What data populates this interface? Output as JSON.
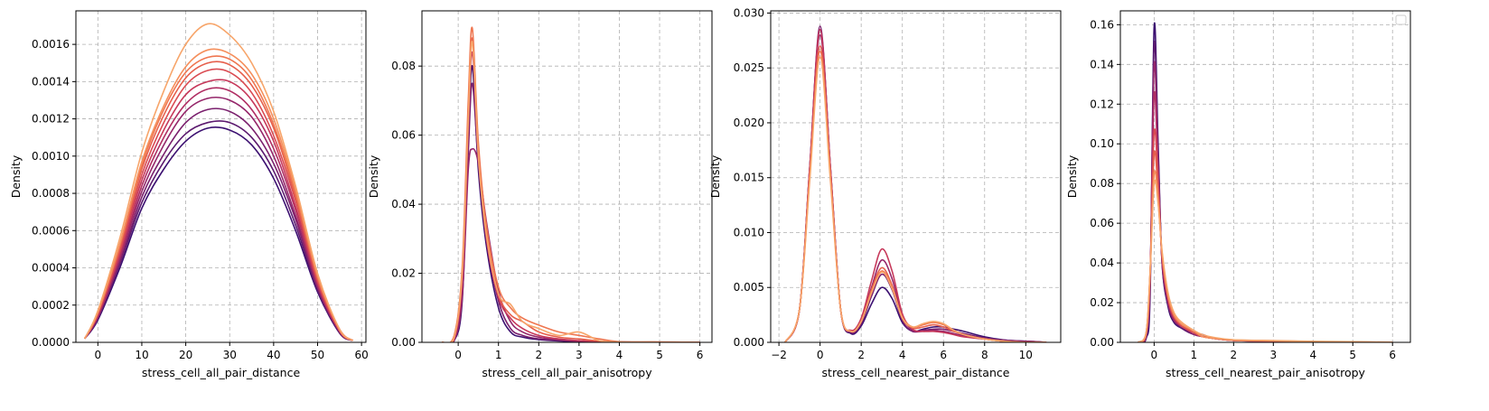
{
  "figure": {
    "panel_count": 4,
    "palette": [
      "#3b0f70",
      "#5c1a6f",
      "#7a1f6d",
      "#95266a",
      "#b02e63",
      "#c7395b",
      "#da4b52",
      "#e65f4c",
      "#ef7650",
      "#f58f5c",
      "#f7a56a"
    ],
    "grid": {
      "on": true,
      "style": "dashed",
      "color": "#b0b0b0"
    }
  },
  "chart_data": [
    {
      "type": "line",
      "subtype": "kde",
      "xlabel": "stress_cell_all_pair_distance",
      "ylabel": "Density",
      "xlim": [
        -5,
        61
      ],
      "ylim": [
        0,
        0.00178
      ],
      "xticks": [
        0,
        10,
        20,
        30,
        40,
        50,
        60
      ],
      "yticks": [
        0.0,
        0.0002,
        0.0004,
        0.0006,
        0.0008,
        0.001,
        0.0012,
        0.0014,
        0.0016
      ],
      "ytick_decimals": 4,
      "x": [
        -3,
        0,
        5,
        10,
        15,
        20,
        25,
        30,
        35,
        40,
        45,
        50,
        55,
        58
      ],
      "series": [
        {
          "values": [
            2e-05,
            0.00012,
            0.0004,
            0.00072,
            0.00093,
            0.00108,
            0.00115,
            0.00114,
            0.00106,
            0.00088,
            0.0006,
            0.00027,
            5e-05,
            1e-05
          ]
        },
        {
          "values": [
            2e-05,
            0.00013,
            0.00042,
            0.00075,
            0.00097,
            0.00112,
            0.00118,
            0.00118,
            0.0011,
            0.00092,
            0.00063,
            0.00028,
            5e-05,
            1e-05
          ]
        },
        {
          "values": [
            2e-05,
            0.00013,
            0.00043,
            0.00078,
            0.00101,
            0.00118,
            0.00125,
            0.00124,
            0.00115,
            0.00096,
            0.00066,
            0.00029,
            6e-05,
            1e-05
          ]
        },
        {
          "values": [
            2e-05,
            0.00014,
            0.00045,
            0.00081,
            0.00106,
            0.00124,
            0.00131,
            0.0013,
            0.00121,
            0.001,
            0.00068,
            0.0003,
            6e-05,
            1e-05
          ]
        },
        {
          "values": [
            2e-05,
            0.00014,
            0.00046,
            0.00084,
            0.0011,
            0.00128,
            0.00136,
            0.00135,
            0.00125,
            0.00104,
            0.00071,
            0.00031,
            6e-05,
            1e-05
          ]
        },
        {
          "values": [
            2e-05,
            0.00015,
            0.00048,
            0.00087,
            0.00114,
            0.00133,
            0.0014,
            0.0014,
            0.0013,
            0.00108,
            0.00073,
            0.00032,
            6e-05,
            1e-05
          ]
        },
        {
          "values": [
            2e-05,
            0.00015,
            0.00049,
            0.0009,
            0.00118,
            0.00138,
            0.00146,
            0.00145,
            0.00134,
            0.00111,
            0.00076,
            0.00033,
            6e-05,
            1e-05
          ]
        },
        {
          "values": [
            2e-05,
            0.00016,
            0.00051,
            0.00093,
            0.00122,
            0.00142,
            0.0015,
            0.00149,
            0.00138,
            0.00115,
            0.00078,
            0.00034,
            7e-05,
            1e-05
          ]
        },
        {
          "values": [
            2e-05,
            0.00016,
            0.00052,
            0.00095,
            0.00125,
            0.00145,
            0.00153,
            0.00152,
            0.00141,
            0.00117,
            0.0008,
            0.00035,
            7e-05,
            1e-05
          ]
        },
        {
          "values": [
            2e-05,
            0.00016,
            0.00053,
            0.00097,
            0.00127,
            0.00148,
            0.00157,
            0.00155,
            0.00144,
            0.0012,
            0.00082,
            0.00036,
            7e-05,
            1e-05
          ]
        },
        {
          "values": [
            2e-05,
            0.00017,
            0.00056,
            0.00102,
            0.00135,
            0.0016,
            0.00171,
            0.00165,
            0.0015,
            0.00124,
            0.00084,
            0.00037,
            7e-05,
            1e-05
          ]
        }
      ]
    },
    {
      "type": "line",
      "subtype": "kde",
      "xlabel": "stress_cell_all_pair_anisotropy",
      "ylabel": "Density",
      "xlim": [
        -0.9,
        6.3
      ],
      "ylim": [
        0,
        0.096
      ],
      "xticks": [
        0,
        1,
        2,
        3,
        4,
        5,
        6
      ],
      "yticks": [
        0.0,
        0.02,
        0.04,
        0.06,
        0.08
      ],
      "ytick_decimals": 2,
      "x": [
        -0.4,
        -0.1,
        0.1,
        0.25,
        0.35,
        0.5,
        0.7,
        1.0,
        1.3,
        1.6,
        2.0,
        2.5,
        3.0,
        3.5,
        4.0,
        5.0,
        6.0
      ],
      "series": [
        {
          "values": [
            0,
            0.0005,
            0.012,
            0.058,
            0.08,
            0.05,
            0.028,
            0.01,
            0.003,
            0.0015,
            0.0008,
            0.0004,
            0.0002,
            0.0001,
            0.0001,
            0,
            0
          ]
        },
        {
          "values": [
            0,
            0.0008,
            0.015,
            0.055,
            0.075,
            0.052,
            0.03,
            0.012,
            0.004,
            0.002,
            0.001,
            0.0006,
            0.0003,
            0.0002,
            0.0001,
            0,
            0
          ]
        },
        {
          "values": [
            0,
            0.0006,
            0.013,
            0.05,
            0.056,
            0.052,
            0.035,
            0.015,
            0.006,
            0.003,
            0.0015,
            0.0008,
            0.0004,
            0.0002,
            0.0001,
            0,
            0
          ]
        },
        {
          "values": [
            0,
            0.001,
            0.018,
            0.062,
            0.084,
            0.055,
            0.03,
            0.013,
            0.007,
            0.004,
            0.002,
            0.001,
            0.0005,
            0.0002,
            0.0001,
            0,
            0
          ]
        },
        {
          "values": [
            0,
            0.0012,
            0.02,
            0.066,
            0.088,
            0.056,
            0.032,
            0.014,
            0.008,
            0.006,
            0.003,
            0.0015,
            0.001,
            0.0004,
            0.0001,
            0.0001,
            0
          ]
        },
        {
          "values": [
            0,
            0.002,
            0.022,
            0.07,
            0.091,
            0.058,
            0.034,
            0.016,
            0.01,
            0.007,
            0.005,
            0.003,
            0.002,
            0.001,
            0.0002,
            0.0001,
            0
          ]
        },
        {
          "values": [
            0,
            0.0015,
            0.02,
            0.064,
            0.087,
            0.054,
            0.031,
            0.014,
            0.011,
            0.006,
            0.004,
            0.002,
            0.003,
            0.0005,
            0.0001,
            0,
            0
          ]
        }
      ]
    },
    {
      "type": "line",
      "subtype": "kde",
      "xlabel": "stress_cell_nearest_pair_distance",
      "ylabel": "Density",
      "xlim": [
        -2.4,
        11.7
      ],
      "ylim": [
        0,
        0.0302
      ],
      "xticks": [
        -2,
        0,
        2,
        4,
        6,
        8,
        10
      ],
      "yticks": [
        0.0,
        0.005,
        0.01,
        0.015,
        0.02,
        0.025,
        0.03
      ],
      "ytick_decimals": 3,
      "x": [
        -1.7,
        -1.0,
        -0.5,
        0,
        0.5,
        1.0,
        1.5,
        2.0,
        2.5,
        3.0,
        3.5,
        4.0,
        4.5,
        5.0,
        5.5,
        6.0,
        6.5,
        7.0,
        8.0,
        9.0,
        10.0,
        11.0
      ],
      "series": [
        {
          "values": [
            0,
            0.003,
            0.016,
            0.0285,
            0.016,
            0.003,
            0.0008,
            0.0015,
            0.0035,
            0.005,
            0.004,
            0.0018,
            0.001,
            0.0012,
            0.0014,
            0.0014,
            0.0012,
            0.001,
            0.0005,
            0.0002,
            0.0001,
            0
          ]
        },
        {
          "values": [
            0,
            0.003,
            0.016,
            0.0288,
            0.016,
            0.003,
            0.0009,
            0.0017,
            0.0042,
            0.0062,
            0.0048,
            0.002,
            0.001,
            0.0011,
            0.0012,
            0.0012,
            0.001,
            0.0008,
            0.0004,
            0.0002,
            0.0001,
            0
          ]
        },
        {
          "values": [
            0,
            0.003,
            0.0158,
            0.028,
            0.0158,
            0.003,
            0.001,
            0.002,
            0.005,
            0.0075,
            0.0058,
            0.0024,
            0.0011,
            0.001,
            0.0011,
            0.001,
            0.0008,
            0.0006,
            0.0003,
            0.0001,
            0.0001,
            0
          ]
        },
        {
          "values": [
            0,
            0.003,
            0.016,
            0.0285,
            0.016,
            0.003,
            0.0011,
            0.0022,
            0.0056,
            0.0085,
            0.0065,
            0.0026,
            0.0012,
            0.001,
            0.001,
            0.0009,
            0.0007,
            0.0005,
            0.0003,
            0.0001,
            0,
            0
          ]
        },
        {
          "values": [
            0,
            0.003,
            0.0155,
            0.027,
            0.0155,
            0.003,
            0.001,
            0.0019,
            0.0048,
            0.0068,
            0.0052,
            0.0022,
            0.0013,
            0.0014,
            0.0016,
            0.0014,
            0.001,
            0.0007,
            0.0003,
            0.0001,
            0,
            0
          ]
        },
        {
          "values": [
            0,
            0.003,
            0.0152,
            0.0265,
            0.0152,
            0.003,
            0.001,
            0.0019,
            0.0046,
            0.0065,
            0.005,
            0.0023,
            0.0014,
            0.0016,
            0.0018,
            0.0016,
            0.0011,
            0.0007,
            0.0003,
            0.0001,
            0,
            0
          ]
        },
        {
          "values": [
            0,
            0.003,
            0.0148,
            0.026,
            0.0148,
            0.003,
            0.001,
            0.0019,
            0.0045,
            0.0064,
            0.0049,
            0.0022,
            0.0014,
            0.0017,
            0.0019,
            0.0017,
            0.0011,
            0.0007,
            0.0003,
            0.0001,
            0,
            0
          ]
        }
      ]
    },
    {
      "type": "line",
      "subtype": "kde",
      "xlabel": "stress_cell_nearest_pair_anisotropy",
      "ylabel": "Density",
      "xlim": [
        -0.85,
        6.45
      ],
      "ylim": [
        0,
        0.167
      ],
      "xticks": [
        0,
        1,
        2,
        3,
        4,
        5,
        6
      ],
      "yticks": [
        0.0,
        0.02,
        0.04,
        0.06,
        0.08,
        0.1,
        0.12,
        0.14,
        0.16
      ],
      "ytick_decimals": 2,
      "legend": {
        "position": "top-right",
        "empty": true
      },
      "x": [
        -0.4,
        -0.2,
        -0.1,
        0,
        0.1,
        0.2,
        0.35,
        0.5,
        0.7,
        1.0,
        1.2,
        1.5,
        2.0,
        3.0,
        4.0,
        5.0,
        6.0
      ],
      "series": [
        {
          "values": [
            0,
            0.002,
            0.025,
            0.159,
            0.1,
            0.04,
            0.018,
            0.01,
            0.007,
            0.004,
            0.003,
            0.002,
            0.001,
            0.0005,
            0.0002,
            0.0001,
            0
          ]
        },
        {
          "values": [
            0,
            0.003,
            0.03,
            0.15,
            0.096,
            0.04,
            0.019,
            0.011,
            0.007,
            0.004,
            0.004,
            0.002,
            0.001,
            0.0005,
            0.0002,
            0.0001,
            0
          ]
        },
        {
          "values": [
            0,
            0.003,
            0.032,
            0.14,
            0.09,
            0.041,
            0.02,
            0.011,
            0.008,
            0.004,
            0.003,
            0.002,
            0.001,
            0.0005,
            0.0002,
            0.0001,
            0
          ]
        },
        {
          "values": [
            0,
            0.004,
            0.034,
            0.125,
            0.085,
            0.042,
            0.021,
            0.012,
            0.008,
            0.005,
            0.003,
            0.002,
            0.001,
            0.0006,
            0.0003,
            0.0001,
            0
          ]
        },
        {
          "values": [
            0,
            0.004,
            0.035,
            0.106,
            0.08,
            0.043,
            0.022,
            0.013,
            0.008,
            0.005,
            0.003,
            0.002,
            0.001,
            0.0006,
            0.0003,
            0.0001,
            0
          ]
        },
        {
          "values": [
            0,
            0.005,
            0.036,
            0.095,
            0.075,
            0.044,
            0.023,
            0.013,
            0.009,
            0.005,
            0.003,
            0.002,
            0.001,
            0.0007,
            0.0003,
            0.0002,
            0
          ]
        },
        {
          "values": [
            0,
            0.005,
            0.036,
            0.085,
            0.071,
            0.045,
            0.024,
            0.014,
            0.009,
            0.006,
            0.003,
            0.002,
            0.0012,
            0.0008,
            0.0004,
            0.0002,
            0
          ]
        },
        {
          "values": [
            0,
            0.005,
            0.036,
            0.08,
            0.07,
            0.046,
            0.025,
            0.015,
            0.01,
            0.006,
            0.004,
            0.0025,
            0.0013,
            0.0009,
            0.0005,
            0.0003,
            0.0001
          ]
        }
      ]
    }
  ]
}
